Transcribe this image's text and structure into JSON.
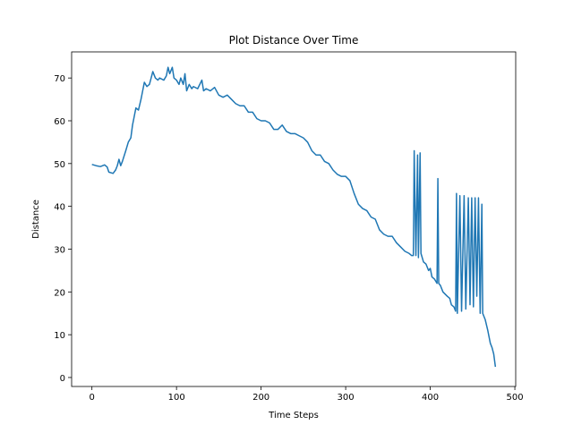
{
  "chart_data": {
    "type": "line",
    "title": "Plot Distance Over Time",
    "x_label": "Time Steps",
    "y_label": "Distance",
    "x": [
      0,
      5,
      10,
      15,
      18,
      20,
      25,
      28,
      30,
      32,
      34,
      36,
      40,
      43,
      46,
      48,
      50,
      52,
      55,
      58,
      60,
      62,
      65,
      68,
      70,
      72,
      75,
      78,
      80,
      85,
      88,
      90,
      92,
      95,
      97,
      100,
      103,
      105,
      108,
      110,
      112,
      115,
      118,
      120,
      125,
      130,
      132,
      135,
      140,
      145,
      150,
      155,
      160,
      165,
      170,
      175,
      180,
      185,
      190,
      195,
      200,
      205,
      210,
      215,
      220,
      225,
      230,
      235,
      240,
      245,
      250,
      255,
      260,
      265,
      270,
      275,
      280,
      285,
      290,
      295,
      300,
      305,
      310,
      315,
      320,
      325,
      330,
      335,
      340,
      345,
      350,
      355,
      360,
      365,
      370,
      375,
      378,
      380,
      381,
      383,
      385,
      386,
      388,
      389,
      392,
      395,
      398,
      400,
      402,
      405,
      408,
      409,
      410,
      412,
      415,
      420,
      423,
      425,
      428,
      430,
      431,
      432,
      435,
      437,
      440,
      442,
      445,
      447,
      449,
      451,
      453,
      455,
      457,
      459,
      461,
      462,
      465,
      468,
      471,
      473,
      475,
      477
    ],
    "series": [
      {
        "name": "Distance",
        "color": "#1f77b4",
        "values": [
          49.8,
          49.5,
          49.3,
          49.7,
          49.2,
          48,
          47.7,
          48.5,
          49.5,
          51,
          49.5,
          50.5,
          53,
          55,
          56,
          59,
          61,
          63,
          62.5,
          65,
          67,
          69,
          68,
          68.5,
          70,
          71.5,
          70,
          69.5,
          70,
          69.5,
          70.5,
          72.5,
          71,
          72.5,
          70,
          69.5,
          68.5,
          70,
          68.5,
          71,
          67,
          68.5,
          67.5,
          68,
          67.5,
          69.5,
          67,
          67.5,
          67,
          67.8,
          66,
          65.5,
          66,
          65,
          64,
          63.5,
          63.5,
          62,
          62,
          60.5,
          60,
          60,
          59.5,
          58,
          58,
          59,
          57.5,
          57,
          57,
          56.5,
          56,
          55,
          53,
          52,
          52,
          50.5,
          50,
          48.5,
          47.5,
          47,
          47,
          46,
          43,
          40.5,
          39.5,
          39,
          37.5,
          37,
          34.5,
          33.5,
          33,
          33,
          31.5,
          30.5,
          29.5,
          29,
          28.5,
          28.5,
          53,
          28.5,
          52,
          28,
          52.5,
          29,
          27,
          26.5,
          25,
          25.5,
          23.5,
          23,
          22,
          46.5,
          22,
          21.5,
          20,
          19,
          18.5,
          17,
          16.5,
          15.5,
          43,
          15,
          42.5,
          15.5,
          42.5,
          16,
          42,
          17,
          42,
          16.5,
          42,
          19,
          42,
          15,
          40.5,
          15,
          13.5,
          11,
          8,
          7,
          5.5,
          2.5
        ]
      }
    ],
    "xlim": [
      -24,
      501
    ],
    "ylim": [
      -2.1,
      76.1
    ],
    "xticks": [
      0,
      100,
      200,
      300,
      400,
      500
    ],
    "yticks": [
      0,
      10,
      20,
      30,
      40,
      50,
      60,
      70
    ]
  }
}
